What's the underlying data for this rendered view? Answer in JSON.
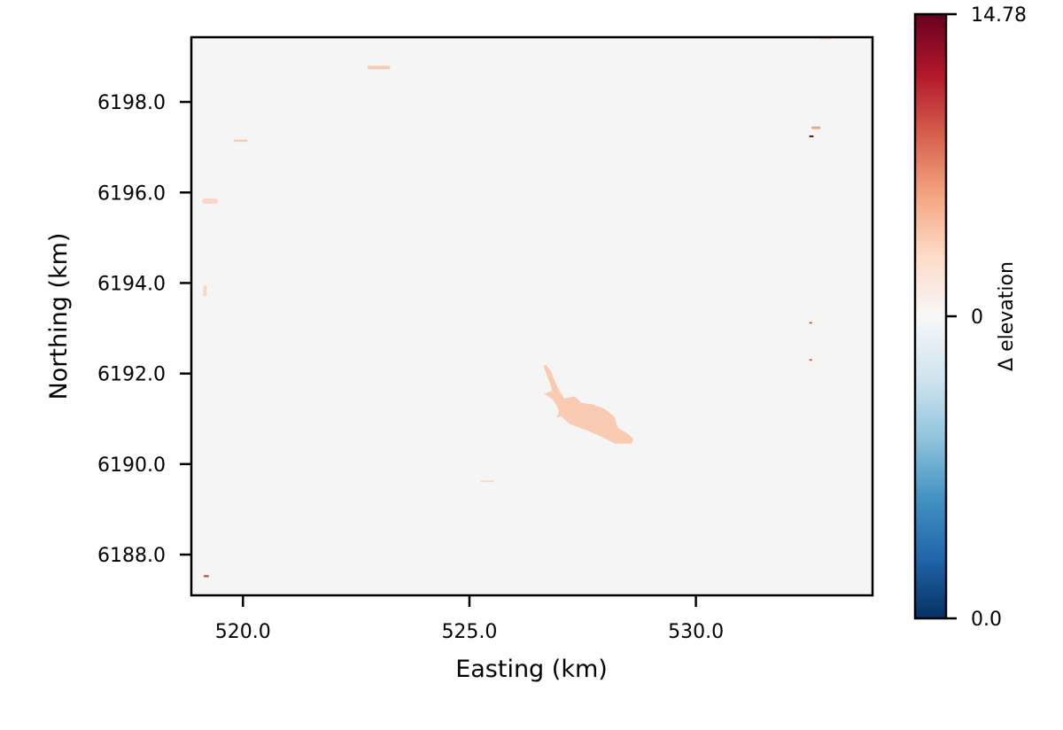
{
  "chart_data": {
    "type": "heatmap",
    "title": "",
    "xlabel": "Easting (km)",
    "ylabel": "Northing (km)",
    "xlim": [
      518.86,
      533.9
    ],
    "ylim": [
      6187.1,
      6199.43
    ],
    "x_ticks": [
      520.0,
      525.0,
      530.0
    ],
    "x_tick_labels": [
      "520.0",
      "525.0",
      "530.0"
    ],
    "y_ticks": [
      6188.0,
      6190.0,
      6192.0,
      6194.0,
      6196.0,
      6198.0
    ],
    "y_tick_labels": [
      "6188.0",
      "6190.0",
      "6192.0",
      "6194.0",
      "6196.0",
      "6198.0"
    ],
    "grid": false,
    "background_value_color": "#f5f5f5",
    "colorbar": {
      "label": "Δ elevation",
      "cmap": "RdBu_r",
      "tick_labels": [
        "14.78",
        "0",
        "0.0"
      ],
      "tick_fractions": [
        1.0,
        0.5,
        0.0
      ],
      "colors": [
        "#053061",
        "#2166ac",
        "#4393c3",
        "#92c5de",
        "#d1e5f0",
        "#f7f7f7",
        "#fddbc7",
        "#f4a582",
        "#d6604d",
        "#b2182b",
        "#67001f"
      ]
    },
    "features": [
      {
        "name": "reservoir",
        "color": "#f9cbb2",
        "outline": [
          [
            526.68,
            6192.2
          ],
          [
            526.78,
            6192.08
          ],
          [
            526.86,
            6191.9
          ],
          [
            526.95,
            6191.68
          ],
          [
            527.1,
            6191.45
          ],
          [
            527.32,
            6191.5
          ],
          [
            527.48,
            6191.35
          ],
          [
            527.72,
            6191.32
          ],
          [
            527.98,
            6191.22
          ],
          [
            528.2,
            6191.05
          ],
          [
            528.28,
            6190.8
          ],
          [
            528.48,
            6190.68
          ],
          [
            528.62,
            6190.56
          ],
          [
            528.58,
            6190.45
          ],
          [
            528.22,
            6190.45
          ],
          [
            527.88,
            6190.62
          ],
          [
            527.58,
            6190.75
          ],
          [
            527.22,
            6190.88
          ],
          [
            527.02,
            6191.06
          ],
          [
            526.92,
            6191.02
          ],
          [
            526.98,
            6191.16
          ],
          [
            526.92,
            6191.3
          ],
          [
            526.84,
            6191.42
          ],
          [
            526.74,
            6191.5
          ],
          [
            526.65,
            6191.55
          ],
          [
            526.82,
            6191.62
          ],
          [
            526.78,
            6191.78
          ],
          [
            526.7,
            6191.98
          ],
          [
            526.64,
            6192.16
          ]
        ]
      }
    ],
    "specks": [
      {
        "x": 522.75,
        "y": 6198.72,
        "w": 0.5,
        "h": 0.08,
        "color": "#f9cbb2"
      },
      {
        "x": 519.8,
        "y": 6197.12,
        "w": 0.3,
        "h": 0.05,
        "color": "#f9cbb2"
      },
      {
        "x": 519.1,
        "y": 6195.75,
        "w": 0.35,
        "h": 0.12,
        "color": "#fad8c6"
      },
      {
        "x": 519.12,
        "y": 6193.7,
        "w": 0.08,
        "h": 0.25,
        "color": "#fad8c6"
      },
      {
        "x": 532.55,
        "y": 6197.4,
        "w": 0.2,
        "h": 0.06,
        "color": "#f4a582"
      },
      {
        "x": 532.5,
        "y": 6197.22,
        "w": 0.1,
        "h": 0.04,
        "color": "#67001f"
      },
      {
        "x": 532.5,
        "y": 6193.1,
        "w": 0.07,
        "h": 0.04,
        "color": "#d6604d"
      },
      {
        "x": 532.5,
        "y": 6192.28,
        "w": 0.07,
        "h": 0.04,
        "color": "#d6604d"
      },
      {
        "x": 519.13,
        "y": 6187.5,
        "w": 0.12,
        "h": 0.05,
        "color": "#d6604d"
      },
      {
        "x": 532.75,
        "y": 6199.38,
        "w": 0.25,
        "h": 0.05,
        "color": "#fad8c6"
      },
      {
        "x": 525.25,
        "y": 6189.6,
        "w": 0.3,
        "h": 0.04,
        "color": "#fad8c6"
      }
    ]
  }
}
